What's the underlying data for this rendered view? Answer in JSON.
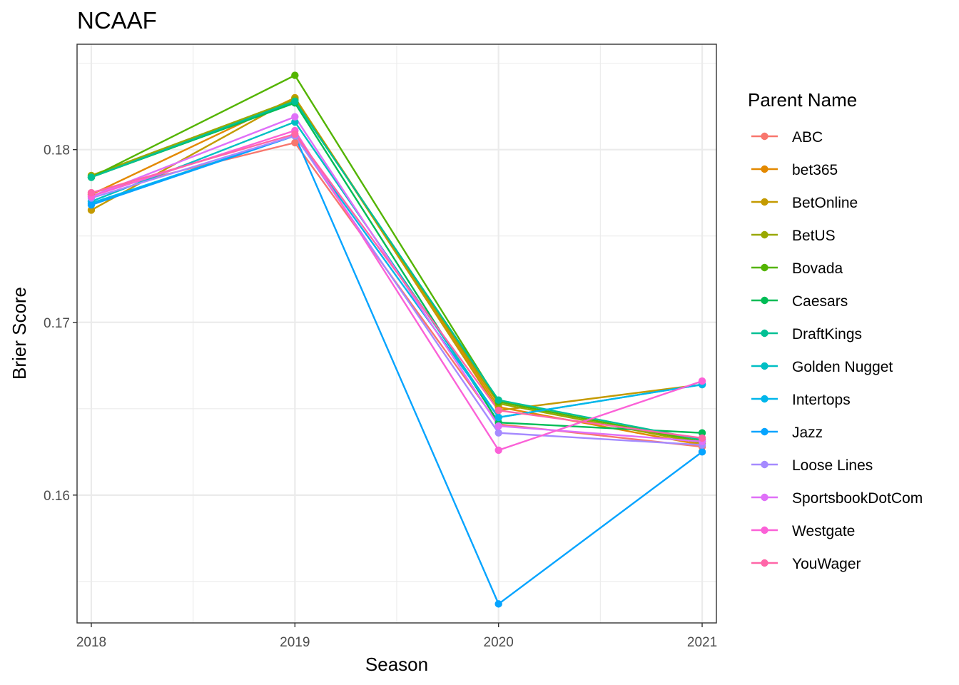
{
  "chart_data": {
    "type": "line",
    "title": "NCAAF",
    "xlabel": "Season",
    "ylabel": "Brier Score",
    "x": [
      2018,
      2019,
      2020,
      2021
    ],
    "xlim": [
      2017.93,
      2021.07
    ],
    "ylim": [
      0.1526,
      0.1861
    ],
    "yticks": [
      0.16,
      0.17,
      0.18
    ],
    "ytick_labels": [
      "0.16",
      "0.17",
      "0.18"
    ],
    "xtick_labels": [
      "2018",
      "2019",
      "2020",
      "2021"
    ],
    "grid": true,
    "legend": {
      "title": "Parent Name",
      "placement": "right"
    },
    "series": [
      {
        "name": "ABC",
        "color": "#F8766D",
        "values": [
          0.1775,
          0.1804,
          0.1641,
          0.1628
        ]
      },
      {
        "name": "bet365",
        "color": "#E38900",
        "values": [
          0.1774,
          0.183,
          0.1651,
          0.1629
        ]
      },
      {
        "name": "BetOnline",
        "color": "#C49A00",
        "values": [
          0.1765,
          0.183,
          0.1649,
          0.1664
        ]
      },
      {
        "name": "BetUS",
        "color": "#99A800",
        "values": [
          0.1785,
          0.1829,
          0.1653,
          0.163
        ]
      },
      {
        "name": "Bovada",
        "color": "#53B400",
        "values": [
          0.1784,
          0.1843,
          0.1654,
          0.1631
        ]
      },
      {
        "name": "Caesars",
        "color": "#00BC56",
        "values": [
          0.1784,
          0.1827,
          0.1642,
          0.1636
        ]
      },
      {
        "name": "DraftKings",
        "color": "#00C094",
        "values": [
          0.1784,
          0.1828,
          0.1655,
          0.1632
        ]
      },
      {
        "name": "Golden Nugget",
        "color": "#00BFC4",
        "values": [
          0.177,
          0.1816,
          0.1645,
          0.1664
        ]
      },
      {
        "name": "Intertops",
        "color": "#00B6EB",
        "values": [
          0.1769,
          0.1808,
          0.1645,
          0.1664
        ]
      },
      {
        "name": "Jazz",
        "color": "#06A4FF",
        "values": [
          0.1768,
          0.1808,
          0.1537,
          0.1625
        ]
      },
      {
        "name": "Loose Lines",
        "color": "#A58AFF",
        "values": [
          0.1772,
          0.1808,
          0.1636,
          0.1629
        ]
      },
      {
        "name": "SportsbookDotCom",
        "color": "#DF70F8",
        "values": [
          0.1773,
          0.1819,
          0.164,
          0.1631
        ]
      },
      {
        "name": "Westgate",
        "color": "#FB61D7",
        "values": [
          0.1773,
          0.1811,
          0.1626,
          0.1666
        ]
      },
      {
        "name": "YouWager",
        "color": "#FF66A8",
        "values": [
          0.1775,
          0.1809,
          0.1649,
          0.1633
        ]
      }
    ]
  }
}
